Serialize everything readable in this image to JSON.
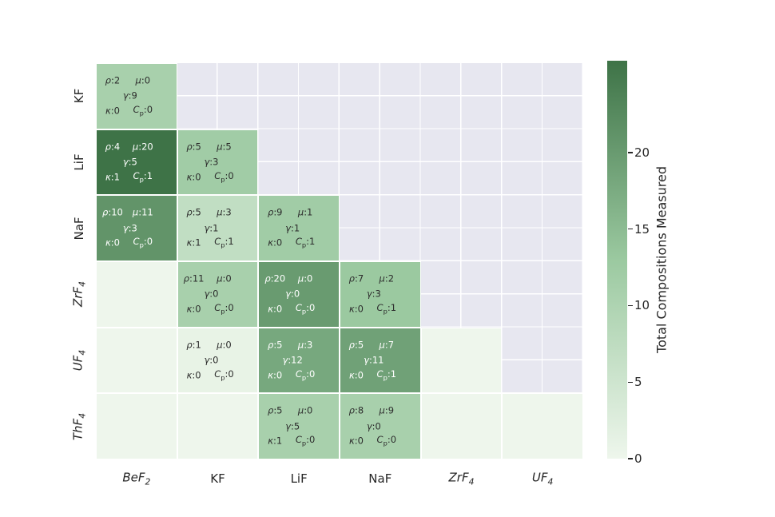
{
  "chart_data": {
    "type": "heatmap",
    "title": "",
    "x_tick_labels": [
      {
        "base": "BeF",
        "sub": "2",
        "italic": true
      },
      {
        "base": "KF",
        "sub": "",
        "italic": false
      },
      {
        "base": "LiF",
        "sub": "",
        "italic": false
      },
      {
        "base": "NaF",
        "sub": "",
        "italic": false
      },
      {
        "base": "ZrF",
        "sub": "4",
        "italic": true
      },
      {
        "base": "UF",
        "sub": "4",
        "italic": true
      }
    ],
    "y_tick_labels": [
      {
        "base": "KF",
        "sub": "",
        "italic": false
      },
      {
        "base": "LiF",
        "sub": "",
        "italic": false
      },
      {
        "base": "NaF",
        "sub": "",
        "italic": false
      },
      {
        "base": "ZrF",
        "sub": "4",
        "italic": true
      },
      {
        "base": "UF",
        "sub": "4",
        "italic": true
      },
      {
        "base": "ThF",
        "sub": "4",
        "italic": true
      }
    ],
    "annotation_labels": {
      "rho": "ρ",
      "mu": "μ",
      "gamma": "γ",
      "kappa": "κ",
      "cp_base": "C",
      "cp_sub": "p"
    },
    "cells": [
      {
        "row": 0,
        "col": 0,
        "rho": 2,
        "mu": 0,
        "gamma": 9,
        "kappa": 0,
        "cp": 0,
        "value": 11
      },
      {
        "row": 1,
        "col": 0,
        "rho": 4,
        "mu": 20,
        "gamma": 5,
        "kappa": 1,
        "cp": 1,
        "value": 26
      },
      {
        "row": 1,
        "col": 1,
        "rho": 5,
        "mu": 5,
        "gamma": 3,
        "kappa": 0,
        "cp": 0,
        "value": 12
      },
      {
        "row": 2,
        "col": 0,
        "rho": 10,
        "mu": 11,
        "gamma": 3,
        "kappa": 0,
        "cp": 0,
        "value": 21
      },
      {
        "row": 2,
        "col": 1,
        "rho": 5,
        "mu": 3,
        "gamma": 1,
        "kappa": 1,
        "cp": 1,
        "value": 7
      },
      {
        "row": 2,
        "col": 2,
        "rho": 9,
        "mu": 1,
        "gamma": 1,
        "kappa": 0,
        "cp": 1,
        "value": 12
      },
      {
        "row": 3,
        "col": 1,
        "rho": 11,
        "mu": 0,
        "gamma": 0,
        "kappa": 0,
        "cp": 0,
        "value": 11
      },
      {
        "row": 3,
        "col": 2,
        "rho": 20,
        "mu": 0,
        "gamma": 0,
        "kappa": 0,
        "cp": 0,
        "value": 20
      },
      {
        "row": 3,
        "col": 3,
        "rho": 7,
        "mu": 2,
        "gamma": 3,
        "kappa": 0,
        "cp": 1,
        "value": 13
      },
      {
        "row": 4,
        "col": 1,
        "rho": 1,
        "mu": 0,
        "gamma": 0,
        "kappa": 0,
        "cp": 0,
        "value": 1
      },
      {
        "row": 4,
        "col": 2,
        "rho": 5,
        "mu": 3,
        "gamma": 12,
        "kappa": 0,
        "cp": 0,
        "value": 18
      },
      {
        "row": 4,
        "col": 3,
        "rho": 5,
        "mu": 7,
        "gamma": 11,
        "kappa": 0,
        "cp": 1,
        "value": 19
      },
      {
        "row": 5,
        "col": 2,
        "rho": 5,
        "mu": 0,
        "gamma": 5,
        "kappa": 1,
        "cp": 0,
        "value": 11
      },
      {
        "row": 5,
        "col": 3,
        "rho": 8,
        "mu": 9,
        "gamma": 0,
        "kappa": 0,
        "cp": 0,
        "value": 11
      }
    ],
    "zero_cells": [
      [
        3,
        0
      ],
      [
        4,
        0
      ],
      [
        4,
        4
      ],
      [
        5,
        0
      ],
      [
        5,
        1
      ],
      [
        5,
        4
      ],
      [
        5,
        5
      ]
    ],
    "masked_rule": "upper triangle: column index >= row index + 1",
    "colorbar": {
      "label": "Total Compositions Measured",
      "ticks": [
        0,
        5,
        10,
        15,
        20
      ],
      "vmin": 0,
      "vmax": 26
    },
    "colors": {
      "scale_stops": [
        "#eef6ec",
        "#9bc9a0",
        "#3e7347"
      ],
      "masked_bg": "#e7e7f0",
      "grid_line": "#ffffff",
      "text_dark": "#2c2c2c",
      "text_light": "#ffffff",
      "tick_text": "#262626"
    },
    "white_text_threshold": 15
  }
}
